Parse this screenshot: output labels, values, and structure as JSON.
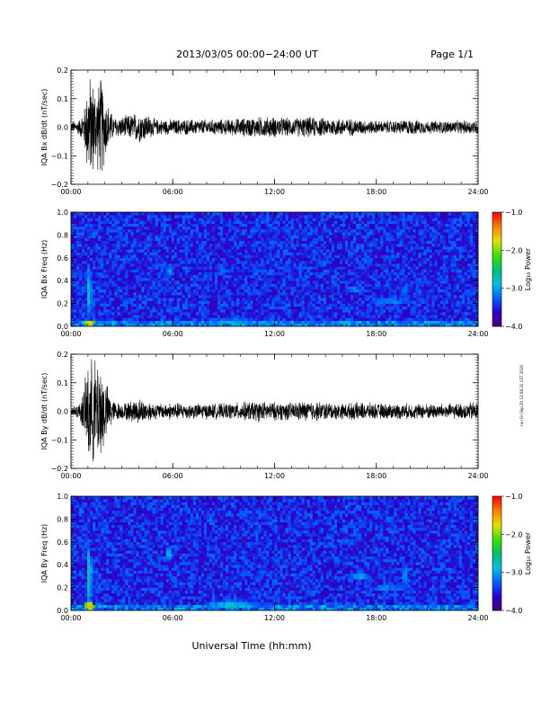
{
  "header": {
    "title": "2013/03/05  00:00−24:00 UT",
    "page": "Page 1/1"
  },
  "stamp": "run Fri Sep 20 13:58:31 CST 2019",
  "xlabel": "Universal Time (hh:mm)",
  "colors": {
    "trace": "#000000",
    "colorbar": [
      "#4a006a",
      "#2a00d0",
      "#0060ff",
      "#00c0e0",
      "#00c070",
      "#40e000",
      "#e0e000",
      "#ff8000",
      "#ff0000"
    ]
  },
  "chart_data": [
    {
      "type": "line",
      "name": "bx-timeseries",
      "ylabel": "IQA Bx dB/dt (nT/sec)",
      "xlim_hours": [
        0,
        24
      ],
      "ylim": [
        -0.2,
        0.2
      ],
      "x_tick_labels": [
        "00:00",
        "06:00",
        "12:00",
        "18:00",
        "24:00"
      ],
      "y_ticks": [
        -0.2,
        -0.1,
        0.0,
        0.1,
        0.2
      ],
      "y_tick_labels": [
        "−0.2",
        "−0.1",
        "0.0",
        "0.1",
        "0.2"
      ],
      "envelope": {
        "hours": [
          0.0,
          0.5,
          0.8,
          1.0,
          1.2,
          1.5,
          1.8,
          2.0,
          2.5,
          3.0,
          3.5,
          4.0,
          4.5,
          5.0,
          5.5,
          6.0,
          7.0,
          8.0,
          9.0,
          10.0,
          11.0,
          12.0,
          13.0,
          14.0,
          15.0,
          16.0,
          17.0,
          18.0,
          19.0,
          20.0,
          21.0,
          22.0,
          23.0,
          24.0
        ],
        "amplitude": [
          0.02,
          0.03,
          0.08,
          0.2,
          0.2,
          0.15,
          0.2,
          0.12,
          0.04,
          0.04,
          0.05,
          0.06,
          0.05,
          0.03,
          0.03,
          0.03,
          0.03,
          0.03,
          0.03,
          0.035,
          0.04,
          0.04,
          0.035,
          0.04,
          0.035,
          0.035,
          0.03,
          0.025,
          0.025,
          0.03,
          0.025,
          0.025,
          0.025,
          0.03
        ]
      }
    },
    {
      "type": "heatmap",
      "name": "bx-spectrogram",
      "ylabel": "IQA Bx Freq (Hz)",
      "xlim_hours": [
        0,
        24
      ],
      "ylim": [
        0.0,
        1.0
      ],
      "x_tick_labels": [
        "00:00",
        "06:00",
        "12:00",
        "18:00",
        "24:00"
      ],
      "y_ticks": [
        0.0,
        0.2,
        0.4,
        0.6,
        0.8,
        1.0
      ],
      "y_tick_labels": [
        "0.0",
        "0.2",
        "0.4",
        "0.6",
        "0.8",
        "1.0"
      ],
      "colorbar": {
        "label": "Log₁₀ Power",
        "range": [
          -4.0,
          -1.0
        ],
        "ticks": [
          -4.0,
          -3.0,
          -2.0,
          -1.0
        ],
        "tick_labels": [
          "−4.0",
          "−3.0",
          "−2.0",
          "−1.0"
        ]
      },
      "features": [
        {
          "hour": 1.1,
          "freq": 0.3,
          "width_h": 0.25,
          "height_hz": 0.55,
          "log_power": -2.7
        },
        {
          "hour": 1.1,
          "freq": 0.03,
          "width_h": 0.6,
          "height_hz": 0.06,
          "log_power": -1.6
        },
        {
          "hour": 5.8,
          "freq": 0.48,
          "width_h": 0.5,
          "height_hz": 0.12,
          "log_power": -3.0
        },
        {
          "hour": 9.5,
          "freq": 0.04,
          "width_h": 4.0,
          "height_hz": 0.08,
          "log_power": -3.0
        },
        {
          "hour": 16.8,
          "freq": 0.32,
          "width_h": 1.8,
          "height_hz": 0.08,
          "log_power": -3.1
        },
        {
          "hour": 18.8,
          "freq": 0.22,
          "width_h": 3.0,
          "height_hz": 0.08,
          "log_power": -3.1
        },
        {
          "hour": 19.7,
          "freq": 0.3,
          "width_h": 0.5,
          "height_hz": 0.3,
          "log_power": -3.2
        }
      ]
    },
    {
      "type": "line",
      "name": "by-timeseries",
      "ylabel": "IQA By dB/dt (nT/sec)",
      "xlim_hours": [
        0,
        24
      ],
      "ylim": [
        -0.2,
        0.2
      ],
      "x_tick_labels": [
        "00:00",
        "06:00",
        "12:00",
        "18:00",
        "24:00"
      ],
      "y_ticks": [
        -0.2,
        -0.1,
        0.0,
        0.1,
        0.2
      ],
      "y_tick_labels": [
        "−0.2",
        "−0.1",
        "0.0",
        "0.1",
        "0.2"
      ],
      "envelope": {
        "hours": [
          0.0,
          0.5,
          0.8,
          1.0,
          1.2,
          1.5,
          1.8,
          2.0,
          2.5,
          3.0,
          3.5,
          4.0,
          4.5,
          5.0,
          5.5,
          6.0,
          7.0,
          8.0,
          9.0,
          10.0,
          11.0,
          12.0,
          13.0,
          14.0,
          15.0,
          16.0,
          17.0,
          18.0,
          19.0,
          20.0,
          21.0,
          22.0,
          23.0,
          24.0
        ],
        "amplitude": [
          0.02,
          0.03,
          0.1,
          0.2,
          0.2,
          0.2,
          0.2,
          0.12,
          0.04,
          0.03,
          0.04,
          0.05,
          0.04,
          0.03,
          0.03,
          0.035,
          0.03,
          0.03,
          0.03,
          0.035,
          0.04,
          0.035,
          0.035,
          0.04,
          0.035,
          0.03,
          0.035,
          0.03,
          0.03,
          0.03,
          0.03,
          0.03,
          0.03,
          0.04
        ]
      }
    },
    {
      "type": "heatmap",
      "name": "by-spectrogram",
      "ylabel": "IQA By Freq (Hz)",
      "xlim_hours": [
        0,
        24
      ],
      "ylim": [
        0.0,
        1.0
      ],
      "x_tick_labels": [
        "00:00",
        "06:00",
        "12:00",
        "18:00",
        "24:00"
      ],
      "y_ticks": [
        0.0,
        0.2,
        0.4,
        0.6,
        0.8,
        1.0
      ],
      "y_tick_labels": [
        "0.0",
        "0.2",
        "0.4",
        "0.6",
        "0.8",
        "1.0"
      ],
      "colorbar": {
        "label": "Log₁₀ Power",
        "range": [
          -4.0,
          -1.0
        ],
        "ticks": [
          -4.0,
          -3.0,
          -2.0,
          -1.0
        ],
        "tick_labels": [
          "−4.0",
          "−3.0",
          "−2.0",
          "−1.0"
        ]
      },
      "features": [
        {
          "hour": 1.1,
          "freq": 0.3,
          "width_h": 0.25,
          "height_hz": 0.6,
          "log_power": -2.6
        },
        {
          "hour": 1.1,
          "freq": 0.04,
          "width_h": 0.6,
          "height_hz": 0.08,
          "log_power": -1.5
        },
        {
          "hour": 5.8,
          "freq": 0.5,
          "width_h": 0.5,
          "height_hz": 0.12,
          "log_power": -2.9
        },
        {
          "hour": 9.5,
          "freq": 0.05,
          "width_h": 4.0,
          "height_hz": 0.1,
          "log_power": -2.9
        },
        {
          "hour": 17.0,
          "freq": 0.3,
          "width_h": 1.6,
          "height_hz": 0.08,
          "log_power": -3.0
        },
        {
          "hour": 18.8,
          "freq": 0.2,
          "width_h": 3.0,
          "height_hz": 0.08,
          "log_power": -3.1
        },
        {
          "hour": 19.7,
          "freq": 0.3,
          "width_h": 0.5,
          "height_hz": 0.3,
          "log_power": -3.1
        }
      ]
    }
  ]
}
